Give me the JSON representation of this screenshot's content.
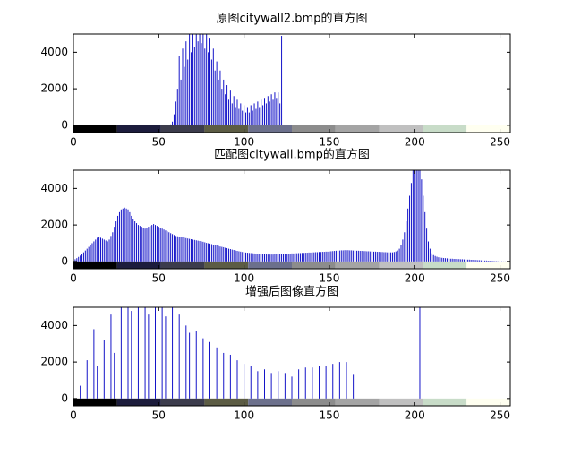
{
  "chart_data": [
    {
      "type": "stem",
      "title": "原图citywall2.bmp的直方图",
      "color": "#1414c8",
      "xlim": [
        0,
        256
      ],
      "ylim": [
        -400,
        5000
      ],
      "xticks": [
        0,
        50,
        100,
        150,
        200,
        250
      ],
      "yticks": [
        0,
        2000,
        4000
      ],
      "colorbar": [
        "#000000",
        "#1c1c3c",
        "#3c3c4c",
        "#5c5c44",
        "#6c708c",
        "#8c8c8c",
        "#a4a4a4",
        "#c0c0c0",
        "#c8dcc8",
        "#fffff0"
      ],
      "x": [
        57,
        58,
        59,
        60,
        61,
        62,
        63,
        64,
        65,
        66,
        67,
        68,
        69,
        70,
        71,
        72,
        73,
        74,
        75,
        76,
        77,
        78,
        79,
        80,
        81,
        82,
        83,
        84,
        85,
        86,
        87,
        88,
        89,
        90,
        91,
        92,
        93,
        94,
        95,
        96,
        97,
        98,
        99,
        100,
        101,
        102,
        103,
        104,
        105,
        106,
        107,
        108,
        109,
        110,
        111,
        112,
        113,
        114,
        115,
        116,
        117,
        118,
        119,
        120,
        121,
        122
      ],
      "values": [
        50,
        200,
        600,
        1300,
        2000,
        3800,
        2500,
        4200,
        3200,
        4600,
        3600,
        5200,
        4000,
        5500,
        4300,
        5800,
        4600,
        6000,
        4500,
        5600,
        4200,
        5300,
        4000,
        4800,
        3600,
        4200,
        3000,
        3500,
        2500,
        3000,
        2000,
        2500,
        1700,
        2200,
        1400,
        1900,
        1200,
        1600,
        1000,
        1400,
        900,
        1200,
        800,
        1100,
        700,
        1000,
        700,
        1100,
        800,
        1200,
        900,
        1300,
        1000,
        1400,
        1100,
        1500,
        1200,
        1600,
        1300,
        1700,
        1400,
        1800,
        1500,
        1800,
        1200,
        4900
      ]
    },
    {
      "type": "stem",
      "title": "匹配图citywall.bmp的直方图",
      "color": "#1414c8",
      "xlim": [
        0,
        256
      ],
      "ylim": [
        -400,
        5000
      ],
      "xticks": [
        0,
        50,
        100,
        150,
        200,
        250
      ],
      "yticks": [
        0,
        2000,
        4000
      ],
      "colorbar": [
        "#000000",
        "#1c1c3c",
        "#3c3c4c",
        "#5c5c44",
        "#6c708c",
        "#8c8c8c",
        "#a4a4a4",
        "#c0c0c0",
        "#c8dcc8",
        "#fffff0"
      ],
      "x": [
        0,
        1,
        2,
        3,
        4,
        5,
        6,
        7,
        8,
        9,
        10,
        11,
        12,
        13,
        14,
        15,
        16,
        17,
        18,
        19,
        20,
        21,
        22,
        23,
        24,
        25,
        26,
        27,
        28,
        29,
        30,
        31,
        32,
        33,
        34,
        35,
        36,
        37,
        38,
        39,
        40,
        41,
        42,
        43,
        44,
        45,
        46,
        47,
        48,
        49,
        50,
        51,
        52,
        53,
        54,
        55,
        56,
        57,
        58,
        59,
        60,
        61,
        62,
        63,
        64,
        65,
        66,
        67,
        68,
        69,
        70,
        71,
        72,
        73,
        74,
        75,
        76,
        77,
        78,
        79,
        80,
        81,
        82,
        83,
        84,
        85,
        86,
        87,
        88,
        89,
        90,
        91,
        92,
        93,
        94,
        95,
        96,
        97,
        98,
        99,
        100,
        101,
        102,
        103,
        104,
        105,
        106,
        107,
        108,
        109,
        110,
        111,
        112,
        113,
        114,
        115,
        116,
        117,
        118,
        119,
        120,
        121,
        122,
        123,
        124,
        125,
        126,
        127,
        128,
        129,
        130,
        131,
        132,
        133,
        134,
        135,
        136,
        137,
        138,
        139,
        140,
        141,
        142,
        143,
        144,
        145,
        146,
        147,
        148,
        149,
        150,
        151,
        152,
        153,
        154,
        155,
        156,
        157,
        158,
        159,
        160,
        161,
        162,
        163,
        164,
        165,
        166,
        167,
        168,
        169,
        170,
        171,
        172,
        173,
        174,
        175,
        176,
        177,
        178,
        179,
        180,
        181,
        182,
        183,
        184,
        185,
        186,
        187,
        188,
        189,
        190,
        191,
        192,
        193,
        194,
        195,
        196,
        197,
        198,
        199,
        200,
        201,
        202,
        203,
        204,
        205,
        206,
        207,
        208,
        209,
        210,
        211,
        212,
        213,
        214,
        215,
        216,
        217,
        218,
        219,
        220,
        221,
        222,
        223,
        224,
        225,
        226,
        227,
        228,
        229,
        230,
        231,
        232,
        233,
        234,
        235,
        236,
        237,
        238,
        239,
        240,
        241,
        242,
        243,
        244,
        245,
        246,
        247,
        248,
        249,
        250,
        251,
        252,
        253,
        254,
        255
      ],
      "values": [
        80,
        120,
        180,
        250,
        320,
        400,
        500,
        600,
        700,
        800,
        900,
        1000,
        1100,
        1200,
        1300,
        1350,
        1300,
        1250,
        1200,
        1150,
        1100,
        1200,
        1400,
        1600,
        1900,
        2200,
        2500,
        2700,
        2850,
        2900,
        2950,
        2900,
        2850,
        2700,
        2500,
        2350,
        2200,
        2100,
        2000,
        1950,
        1900,
        1850,
        1800,
        1850,
        1900,
        1950,
        2000,
        2050,
        2000,
        1950,
        1900,
        1850,
        1800,
        1750,
        1700,
        1650,
        1600,
        1550,
        1500,
        1450,
        1400,
        1380,
        1360,
        1340,
        1320,
        1300,
        1280,
        1260,
        1240,
        1220,
        1200,
        1180,
        1160,
        1140,
        1120,
        1100,
        1080,
        1050,
        1020,
        1000,
        980,
        950,
        920,
        900,
        880,
        850,
        820,
        800,
        780,
        750,
        730,
        700,
        680,
        650,
        630,
        600,
        580,
        560,
        540,
        520,
        500,
        490,
        480,
        470,
        460,
        450,
        440,
        430,
        420,
        410,
        400,
        400,
        390,
        390,
        380,
        380,
        380,
        380,
        390,
        390,
        400,
        400,
        410,
        410,
        420,
        420,
        430,
        430,
        440,
        440,
        450,
        450,
        460,
        460,
        470,
        470,
        480,
        480,
        490,
        490,
        500,
        500,
        510,
        510,
        520,
        520,
        530,
        530,
        540,
        540,
        550,
        560,
        570,
        580,
        590,
        600,
        600,
        610,
        610,
        620,
        620,
        620,
        610,
        610,
        600,
        600,
        590,
        590,
        580,
        580,
        570,
        570,
        560,
        560,
        550,
        550,
        540,
        540,
        530,
        530,
        520,
        520,
        510,
        510,
        500,
        500,
        500,
        500,
        520,
        550,
        600,
        700,
        900,
        1200,
        1600,
        2200,
        2900,
        3600,
        4300,
        5000,
        5500,
        5800,
        5600,
        5200,
        4500,
        3600,
        2700,
        1800,
        1100,
        700,
        450,
        350,
        300,
        260,
        230,
        210,
        200,
        190,
        180,
        170,
        160,
        150,
        150,
        140,
        140,
        130,
        130,
        120,
        120,
        110,
        110,
        100,
        100,
        90,
        90,
        80,
        80,
        70,
        70,
        60,
        60,
        50,
        50,
        40,
        40,
        30,
        30,
        20,
        20,
        10,
        10,
        10,
        5,
        5,
        0,
        0
      ]
    },
    {
      "type": "stem",
      "title": "增强后图像直方图",
      "color": "#1414c8",
      "xlim": [
        0,
        256
      ],
      "ylim": [
        -400,
        5000
      ],
      "xticks": [
        0,
        50,
        100,
        150,
        200,
        250
      ],
      "yticks": [
        0,
        2000,
        4000
      ],
      "colorbar": [
        "#000000",
        "#1c1c3c",
        "#3c3c4c",
        "#5c5c44",
        "#6c708c",
        "#8c8c8c",
        "#a4a4a4",
        "#c0c0c0",
        "#c8dcc8",
        "#fffff0"
      ],
      "x": [
        4,
        8,
        12,
        14,
        18,
        22,
        24,
        28,
        32,
        34,
        38,
        42,
        44,
        48,
        52,
        54,
        58,
        62,
        66,
        68,
        72,
        76,
        80,
        84,
        88,
        92,
        96,
        100,
        104,
        108,
        112,
        116,
        120,
        124,
        128,
        132,
        136,
        140,
        144,
        148,
        152,
        156,
        160,
        164,
        203
      ],
      "values": [
        700,
        2100,
        3800,
        1800,
        3200,
        4600,
        2500,
        5600,
        6000,
        4800,
        6500,
        5800,
        4600,
        7000,
        6000,
        4500,
        5200,
        4600,
        4000,
        3600,
        3700,
        3300,
        3100,
        2800,
        2500,
        2400,
        2100,
        1900,
        1800,
        1500,
        1600,
        1400,
        1500,
        1400,
        1200,
        1600,
        1700,
        1700,
        1800,
        1800,
        1900,
        2000,
        2000,
        1300,
        7000
      ]
    }
  ]
}
